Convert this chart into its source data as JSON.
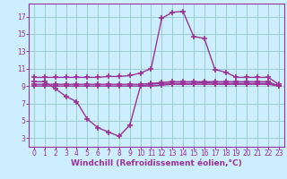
{
  "bg_color": "#cceeff",
  "grid_color": "#99cccc",
  "line_color": "#993399",
  "marker": "+",
  "markersize": 4,
  "markeredgewidth": 1.2,
  "linewidth": 1.0,
  "xlabel": "Windchill (Refroidissement éolien,°C)",
  "xlabel_fontsize": 6.5,
  "xtick_fontsize": 5.5,
  "ytick_fontsize": 5.5,
  "ytick_color": "#993399",
  "xtick_color": "#993399",
  "xlabel_color": "#993399",
  "xlim": [
    -0.5,
    23.5
  ],
  "ylim": [
    2.0,
    18.5
  ],
  "yticks": [
    3,
    5,
    7,
    9,
    11,
    13,
    15,
    17
  ],
  "xticks": [
    0,
    1,
    2,
    3,
    4,
    5,
    6,
    7,
    8,
    9,
    10,
    11,
    12,
    13,
    14,
    15,
    16,
    17,
    18,
    19,
    20,
    21,
    22,
    23
  ],
  "curve1_x": [
    0,
    1,
    2,
    3,
    4,
    5,
    6,
    7,
    8,
    9,
    10,
    11,
    12,
    13,
    14,
    15,
    16,
    17,
    18,
    19,
    20,
    21,
    22,
    23
  ],
  "curve1_y": [
    10.0,
    10.0,
    10.0,
    10.0,
    10.0,
    10.0,
    10.0,
    10.1,
    10.1,
    10.2,
    10.5,
    11.0,
    16.8,
    17.5,
    17.6,
    14.7,
    14.5,
    10.9,
    10.6,
    10.0,
    10.0,
    10.0,
    10.0,
    9.2
  ],
  "curve2_x": [
    0,
    1,
    2,
    3,
    4,
    5,
    6,
    7,
    8,
    9,
    10,
    11,
    12,
    13,
    14,
    15,
    16,
    17,
    18,
    19,
    20,
    21,
    22,
    23
  ],
  "curve2_y": [
    9.5,
    9.5,
    8.7,
    7.8,
    7.2,
    5.2,
    4.2,
    3.7,
    3.2,
    4.5,
    9.0,
    9.2,
    9.3,
    9.3,
    9.3,
    9.3,
    9.4,
    9.3,
    9.3,
    9.3,
    9.3,
    9.3,
    9.3,
    9.0
  ],
  "curve3_x": [
    0,
    1,
    2,
    3,
    4,
    5,
    6,
    7,
    8,
    9,
    10,
    11,
    12,
    13,
    14,
    15,
    16,
    17,
    18,
    19,
    20,
    21,
    22,
    23
  ],
  "curve3_y": [
    9.2,
    9.2,
    9.2,
    9.2,
    9.2,
    9.2,
    9.2,
    9.2,
    9.2,
    9.2,
    9.2,
    9.3,
    9.4,
    9.5,
    9.5,
    9.5,
    9.5,
    9.5,
    9.5,
    9.5,
    9.5,
    9.5,
    9.5,
    9.0
  ],
  "curve4_x": [
    0,
    1,
    2,
    3,
    4,
    5,
    6,
    7,
    8,
    9,
    10,
    11,
    12,
    13,
    14,
    15,
    16,
    17,
    18,
    19,
    20,
    21,
    22,
    23
  ],
  "curve4_y": [
    9.0,
    9.0,
    9.0,
    9.0,
    9.0,
    9.0,
    9.0,
    9.0,
    9.0,
    9.0,
    9.0,
    9.0,
    9.1,
    9.2,
    9.2,
    9.2,
    9.2,
    9.2,
    9.2,
    9.2,
    9.2,
    9.2,
    9.2,
    9.0
  ]
}
